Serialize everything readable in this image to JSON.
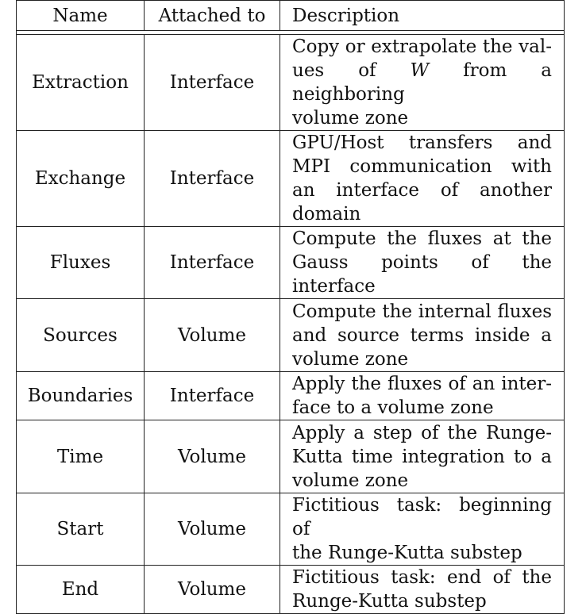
{
  "table": {
    "headers": [
      "Name",
      "Attached to",
      "Description"
    ],
    "rows": [
      {
        "name": "Extraction",
        "attached_to": "Interface",
        "description_lines": [
          "Copy or extrapolate the val-",
          "ues of W from a neighboring",
          "volume zone"
        ]
      },
      {
        "name": "Exchange",
        "attached_to": "Interface",
        "description_lines": [
          "GPU/Host transfers and",
          "MPI communication with",
          "an interface of another",
          "domain"
        ]
      },
      {
        "name": "Fluxes",
        "attached_to": "Interface",
        "description_lines": [
          "Compute the fluxes at the",
          "Gauss points of the interface"
        ]
      },
      {
        "name": "Sources",
        "attached_to": "Volume",
        "description_lines": [
          "Compute the internal fluxes",
          "and source terms inside a",
          "volume zone"
        ]
      },
      {
        "name": "Boundaries",
        "attached_to": "Interface",
        "description_lines": [
          "Apply the fluxes of an inter-",
          "face to a volume zone"
        ]
      },
      {
        "name": "Time",
        "attached_to": "Volume",
        "description_lines": [
          "Apply a step of the Runge-",
          "Kutta time integration to a",
          "volume zone"
        ]
      },
      {
        "name": "Start",
        "attached_to": "Volume",
        "description_lines": [
          "Fictitious task: beginning of",
          "the Runge-Kutta substep"
        ]
      },
      {
        "name": "End",
        "attached_to": "Volume",
        "description_lines": [
          "Fictitious task: end of the",
          "Runge-Kutta substep"
        ]
      }
    ]
  }
}
